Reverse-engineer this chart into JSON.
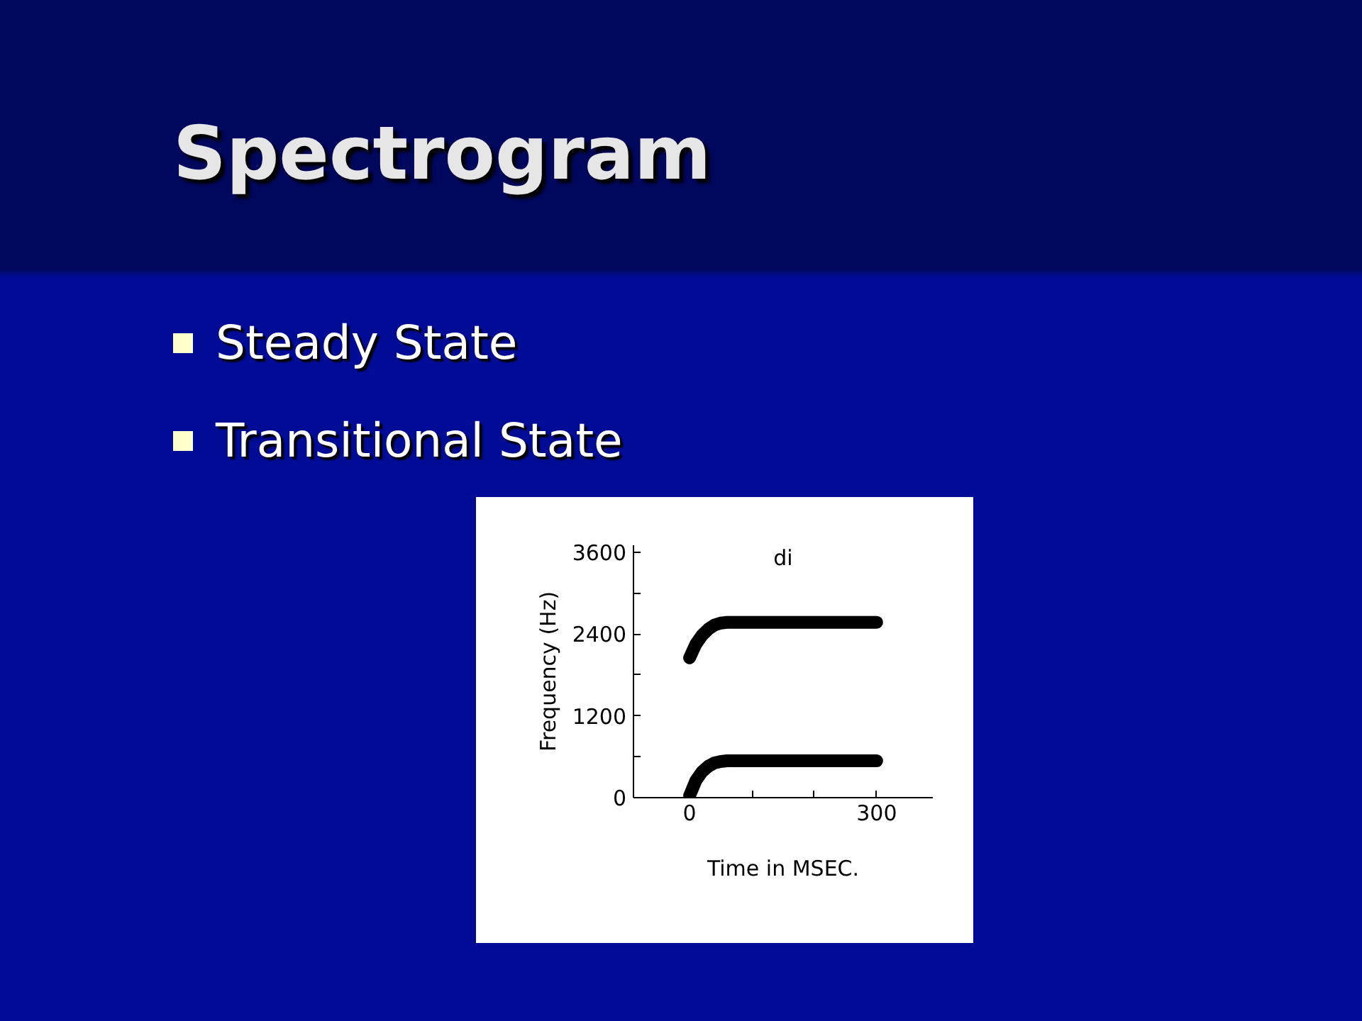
{
  "chart_data": {
    "type": "line",
    "title": "Spectrogram",
    "subtitle": "di",
    "annotations": [
      "Steady State",
      "Transitional State"
    ],
    "xlabel": "Time in MSEC.",
    "ylabel": "Frequency (Hz)",
    "xlim": [
      -90,
      390
    ],
    "xticks": [
      0,
      {
        "value": 100,
        "label": null
      },
      {
        "value": 200,
        "label": null
      },
      300
    ],
    "ylim": [
      0,
      3700
    ],
    "yticks": [
      0,
      {
        "value": 600,
        "label": null
      },
      1200,
      {
        "value": 1800,
        "label": null
      },
      2400,
      {
        "value": 3000,
        "label": null
      },
      3600
    ],
    "grid": false,
    "marker": "none",
    "line_style": "solid",
    "series": [
      {
        "color": "#000000",
        "x": [
          0,
          10,
          20,
          30,
          40,
          50,
          60,
          300
        ],
        "values": [
          30,
          250,
          380,
          460,
          510,
          530,
          540,
          540
        ]
      },
      {
        "color": "#000000",
        "x": [
          0,
          10,
          20,
          30,
          40,
          50,
          60,
          100,
          200,
          300
        ],
        "values": [
          2050,
          2250,
          2380,
          2470,
          2530,
          2560,
          2570,
          2570,
          2570,
          2570
        ]
      }
    ]
  }
}
